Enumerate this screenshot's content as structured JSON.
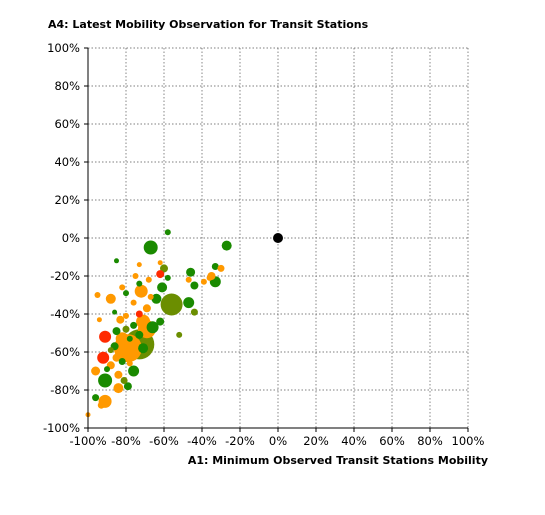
{
  "chart_data": {
    "type": "scatter",
    "title": "A4: Latest Mobility Observation for Transit Stations",
    "xlabel": "A1: Minimum Observed Transit Stations Mobility",
    "ylabel": "",
    "xlim": [
      -100,
      100
    ],
    "ylim": [
      -100,
      100
    ],
    "x_ticks": [
      "-100%",
      "-80%",
      "-60%",
      "-40%",
      "-20%",
      "0%",
      "20%",
      "40%",
      "60%",
      "80%",
      "100%"
    ],
    "y_ticks": [
      "100%",
      "80%",
      "60%",
      "40%",
      "20%",
      "0%",
      "-20%",
      "-40%",
      "-60%",
      "-80%",
      "-100%"
    ],
    "x_tick_values": [
      -100,
      -80,
      -60,
      -40,
      -20,
      0,
      20,
      40,
      60,
      80,
      100
    ],
    "y_tick_values": [
      100,
      80,
      60,
      40,
      20,
      0,
      -20,
      -40,
      -60,
      -80,
      -100
    ],
    "grid": true,
    "colors": {
      "red": "#ff2a00",
      "orange": "#ff9900",
      "olive": "#6b8e00",
      "green": "#1a8a00",
      "black": "#000000"
    },
    "points": [
      {
        "x": 0,
        "y": 0,
        "r": 5,
        "c": "black"
      },
      {
        "x": -58,
        "y": 3,
        "r": 3,
        "c": "green"
      },
      {
        "x": -67,
        "y": -5,
        "r": 7,
        "c": "green"
      },
      {
        "x": -27,
        "y": -4,
        "r": 5,
        "c": "green"
      },
      {
        "x": -85,
        "y": -12,
        "r": 2.5,
        "c": "green"
      },
      {
        "x": -73,
        "y": -14,
        "r": 2.5,
        "c": "orange"
      },
      {
        "x": -62,
        "y": -13,
        "r": 2.5,
        "c": "orange"
      },
      {
        "x": -60,
        "y": -16,
        "r": 4,
        "c": "olive"
      },
      {
        "x": -62,
        "y": -19,
        "r": 4,
        "c": "red"
      },
      {
        "x": -58,
        "y": -21,
        "r": 3,
        "c": "green"
      },
      {
        "x": -46,
        "y": -18,
        "r": 4.5,
        "c": "green"
      },
      {
        "x": -47,
        "y": -22,
        "r": 3,
        "c": "orange"
      },
      {
        "x": -44,
        "y": -25,
        "r": 4,
        "c": "green"
      },
      {
        "x": -39,
        "y": -23,
        "r": 3,
        "c": "orange"
      },
      {
        "x": -35,
        "y": -20,
        "r": 4,
        "c": "orange"
      },
      {
        "x": -33,
        "y": -15,
        "r": 3.5,
        "c": "green"
      },
      {
        "x": -30,
        "y": -16,
        "r": 3.5,
        "c": "orange"
      },
      {
        "x": -33,
        "y": -23,
        "r": 5.5,
        "c": "green"
      },
      {
        "x": -36,
        "y": -21,
        "r": 3,
        "c": "orange"
      },
      {
        "x": -75,
        "y": -20,
        "r": 3,
        "c": "orange"
      },
      {
        "x": -68,
        "y": -22,
        "r": 3,
        "c": "orange"
      },
      {
        "x": -73,
        "y": -24,
        "r": 3,
        "c": "green"
      },
      {
        "x": -61,
        "y": -26,
        "r": 5,
        "c": "green"
      },
      {
        "x": -82,
        "y": -26,
        "r": 3,
        "c": "orange"
      },
      {
        "x": -95,
        "y": -30,
        "r": 3,
        "c": "orange"
      },
      {
        "x": -88,
        "y": -32,
        "r": 5,
        "c": "orange"
      },
      {
        "x": -80,
        "y": -29,
        "r": 3,
        "c": "green"
      },
      {
        "x": -72,
        "y": -28,
        "r": 6.5,
        "c": "orange"
      },
      {
        "x": -67,
        "y": -31,
        "r": 3,
        "c": "orange"
      },
      {
        "x": -64,
        "y": -32,
        "r": 5,
        "c": "green"
      },
      {
        "x": -76,
        "y": -34,
        "r": 3,
        "c": "orange"
      },
      {
        "x": -56,
        "y": -35,
        "r": 11,
        "c": "olive"
      },
      {
        "x": -47,
        "y": -34,
        "r": 5.5,
        "c": "green"
      },
      {
        "x": -44,
        "y": -39,
        "r": 3.5,
        "c": "olive"
      },
      {
        "x": -69,
        "y": -37,
        "r": 4,
        "c": "orange"
      },
      {
        "x": -73,
        "y": -40,
        "r": 3.5,
        "c": "red"
      },
      {
        "x": -80,
        "y": -41,
        "r": 3,
        "c": "orange"
      },
      {
        "x": -86,
        "y": -39,
        "r": 2.5,
        "c": "green"
      },
      {
        "x": -94,
        "y": -43,
        "r": 2.5,
        "c": "orange"
      },
      {
        "x": -83,
        "y": -43,
        "r": 4,
        "c": "orange"
      },
      {
        "x": -71,
        "y": -44,
        "r": 7,
        "c": "orange"
      },
      {
        "x": -62,
        "y": -44,
        "r": 4,
        "c": "green"
      },
      {
        "x": -76,
        "y": -46,
        "r": 3.5,
        "c": "green"
      },
      {
        "x": -66,
        "y": -47,
        "r": 6,
        "c": "green"
      },
      {
        "x": -80,
        "y": -48,
        "r": 3.5,
        "c": "olive"
      },
      {
        "x": -85,
        "y": -49,
        "r": 4,
        "c": "green"
      },
      {
        "x": -69,
        "y": -48,
        "r": 9,
        "c": "orange"
      },
      {
        "x": -52,
        "y": -51,
        "r": 3,
        "c": "olive"
      },
      {
        "x": -73,
        "y": -51,
        "r": 4,
        "c": "green"
      },
      {
        "x": -82,
        "y": -53,
        "r": 6.5,
        "c": "orange"
      },
      {
        "x": -91,
        "y": -52,
        "r": 6,
        "c": "red"
      },
      {
        "x": -78,
        "y": -53,
        "r": 3,
        "c": "green"
      },
      {
        "x": -75,
        "y": -55,
        "r": 3.5,
        "c": "orange"
      },
      {
        "x": -86,
        "y": -57,
        "r": 4,
        "c": "green"
      },
      {
        "x": -79,
        "y": -58,
        "r": 14,
        "c": "orange"
      },
      {
        "x": -73,
        "y": -56,
        "r": 15,
        "c": "olive"
      },
      {
        "x": -88,
        "y": -59,
        "r": 3,
        "c": "olive"
      },
      {
        "x": -80,
        "y": -60,
        "r": 4,
        "c": "orange"
      },
      {
        "x": -71,
        "y": -58,
        "r": 5,
        "c": "green"
      },
      {
        "x": -85,
        "y": -63,
        "r": 4,
        "c": "orange"
      },
      {
        "x": -92,
        "y": -63,
        "r": 6,
        "c": "red"
      },
      {
        "x": -82,
        "y": -65,
        "r": 3.5,
        "c": "green"
      },
      {
        "x": -78,
        "y": -66,
        "r": 3,
        "c": "orange"
      },
      {
        "x": -88,
        "y": -67,
        "r": 4,
        "c": "orange"
      },
      {
        "x": -96,
        "y": -70,
        "r": 4.5,
        "c": "orange"
      },
      {
        "x": -90,
        "y": -69,
        "r": 3,
        "c": "green"
      },
      {
        "x": -76,
        "y": -70,
        "r": 5.5,
        "c": "green"
      },
      {
        "x": -84,
        "y": -72,
        "r": 4,
        "c": "orange"
      },
      {
        "x": -91,
        "y": -75,
        "r": 7,
        "c": "green"
      },
      {
        "x": -81,
        "y": -75,
        "r": 3.5,
        "c": "olive"
      },
      {
        "x": -84,
        "y": -79,
        "r": 5,
        "c": "orange"
      },
      {
        "x": -79,
        "y": -78,
        "r": 4,
        "c": "green"
      },
      {
        "x": -96,
        "y": -84,
        "r": 3.5,
        "c": "green"
      },
      {
        "x": -91,
        "y": -86,
        "r": 6.5,
        "c": "orange"
      },
      {
        "x": -93,
        "y": -88,
        "r": 3.5,
        "c": "orange"
      },
      {
        "x": -100,
        "y": -93,
        "r": 2.5,
        "c": "orange"
      }
    ]
  }
}
